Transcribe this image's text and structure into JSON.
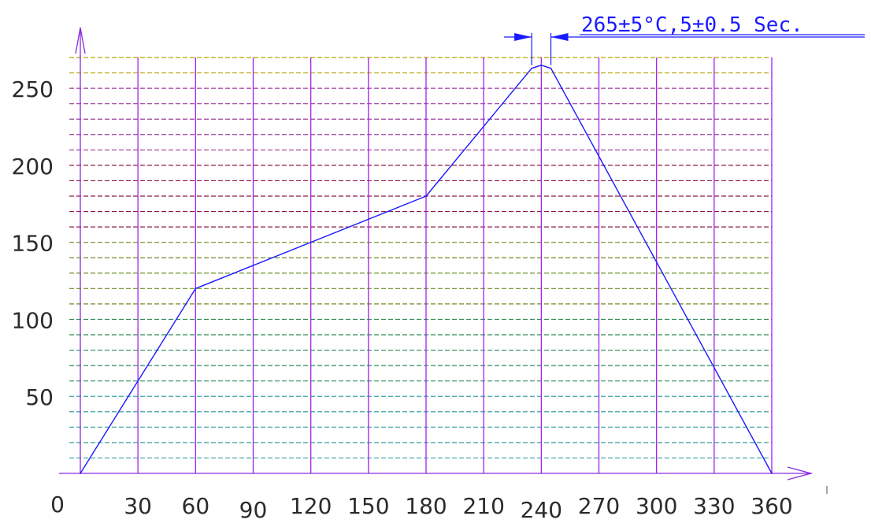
{
  "chart_data": {
    "type": "line",
    "title": "",
    "xlabel": "",
    "ylabel": "",
    "x": [
      0,
      60,
      180,
      235,
      240,
      245,
      360
    ],
    "y": [
      0,
      120,
      180,
      263,
      265,
      263,
      0
    ],
    "xlim": [
      0,
      360
    ],
    "ylim": [
      0,
      270
    ],
    "x_ticks": [
      "0",
      "30",
      "60",
      "90",
      "120",
      "150",
      "180",
      "210",
      "240",
      "270",
      "300",
      "330",
      "360"
    ],
    "x_tick_values": [
      0,
      30,
      60,
      90,
      120,
      150,
      180,
      210,
      240,
      270,
      300,
      330,
      360
    ],
    "y_ticks": [
      "50",
      "100",
      "150",
      "200",
      "250"
    ],
    "y_tick_values": [
      50,
      100,
      150,
      200,
      250
    ],
    "grid": true,
    "grid_x_step": 30,
    "grid_y_step": 10,
    "peak_window": [
      235,
      245
    ],
    "annotation": "265±5°C,5±0.5 Sec.",
    "colors": {
      "line": "#1a1aff",
      "vertical_grid": "#a020f0",
      "axis": "#8a2be2",
      "hgrid_bands": [
        "#3aa0a0",
        "#2e8b57",
        "#6b8e23",
        "#8b1a4a",
        "#9a3b9a",
        "#b8a000"
      ]
    }
  }
}
